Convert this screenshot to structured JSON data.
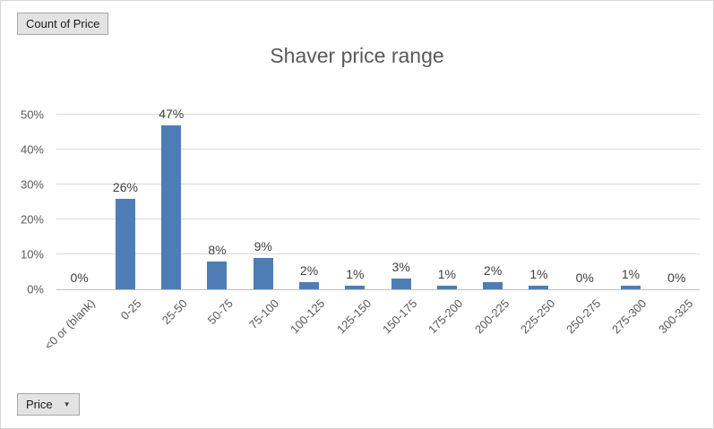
{
  "field_buttons": {
    "value_button": "Count of Price",
    "axis_button": "Price",
    "dropdown_arrow": "▼"
  },
  "chart_data": {
    "type": "bar",
    "title": "Shaver price range",
    "categories": [
      "<0 or (blank)",
      "0-25",
      "25-50",
      "50-75",
      "75-100",
      "100-125",
      "125-150",
      "150-175",
      "175-200",
      "200-225",
      "225-250",
      "250-275",
      "275-300",
      "300-325"
    ],
    "values": [
      0,
      26,
      47,
      8,
      9,
      2,
      1,
      3,
      1,
      2,
      1,
      0,
      1,
      0
    ],
    "data_labels": [
      "0%",
      "26%",
      "47%",
      "8%",
      "9%",
      "2%",
      "1%",
      "3%",
      "1%",
      "2%",
      "1%",
      "0%",
      "1%",
      "0%"
    ],
    "y_ticks": [
      "0%",
      "10%",
      "20%",
      "30%",
      "40%",
      "50%"
    ],
    "ylim": [
      0,
      50
    ],
    "xlabel": "",
    "ylabel": "",
    "bar_color": "#4e7db6",
    "gridlines": true,
    "legend": "none"
  }
}
